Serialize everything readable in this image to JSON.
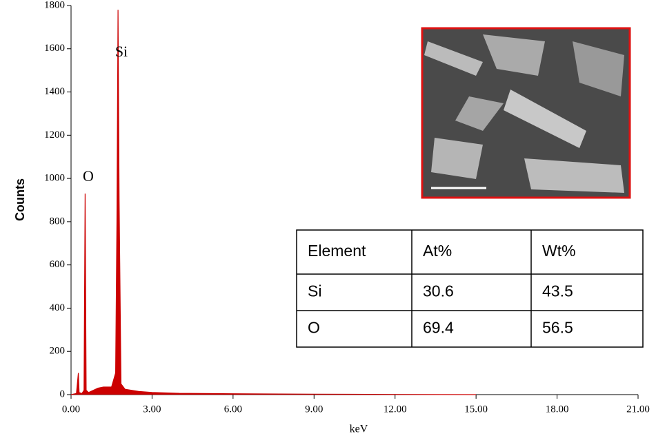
{
  "chart_data": {
    "type": "area",
    "x_label": "keV",
    "y_label": "Counts",
    "x": [
      0,
      0.2,
      0.27,
      0.3,
      0.4,
      0.48,
      0.52,
      0.56,
      0.65,
      1.0,
      1.2,
      1.5,
      1.65,
      1.7,
      1.74,
      1.78,
      1.85,
      2.0,
      2.5,
      3.0,
      4.0,
      6.0,
      9.0,
      12.0,
      15.0
    ],
    "values": [
      0,
      5,
      100,
      10,
      5,
      20,
      930,
      20,
      10,
      30,
      35,
      35,
      100,
      800,
      1780,
      900,
      50,
      25,
      15,
      10,
      6,
      4,
      2,
      1,
      0
    ],
    "color": "#cc0000",
    "peak_labels": [
      "O",
      "Si"
    ],
    "xlim": [
      0,
      21
    ],
    "ylim": [
      0,
      1800
    ],
    "xticks": [
      {
        "value": 0,
        "label": "0.00"
      },
      {
        "value": 3,
        "label": "3.00"
      },
      {
        "value": 6,
        "label": "6.00"
      },
      {
        "value": 9,
        "label": "9.00"
      },
      {
        "value": 12,
        "label": "12.00"
      },
      {
        "value": 15,
        "label": "15.00"
      },
      {
        "value": 18,
        "label": "18.00"
      },
      {
        "value": 21,
        "label": "21.00"
      }
    ],
    "yticks": [
      0,
      200,
      400,
      600,
      800,
      1000,
      1200,
      1400,
      1600,
      1800
    ]
  },
  "table": {
    "header": [
      "Element",
      "At%",
      "Wt%"
    ],
    "rows": [
      [
        "Si",
        "30.6",
        "43.5"
      ],
      [
        "O",
        "69.4",
        "56.5"
      ]
    ]
  }
}
